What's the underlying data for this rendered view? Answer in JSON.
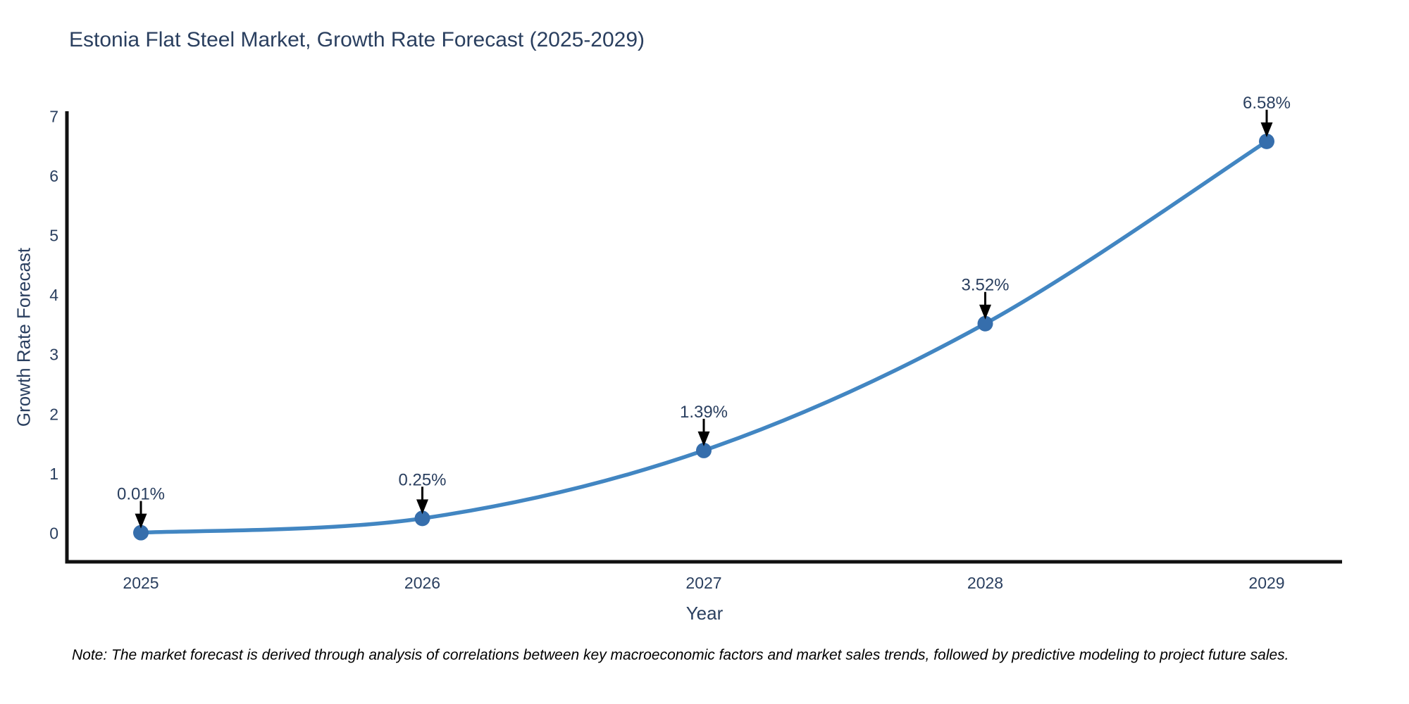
{
  "title": "Estonia Flat Steel Market, Growth Rate Forecast (2025-2029)",
  "note": "Note: The market forecast is derived through analysis of correlations between key macroeconomic factors and market sales trends, followed by predictive modeling to project future sales.",
  "chart_data": {
    "type": "line",
    "title": "Estonia Flat Steel Market, Growth Rate Forecast (2025-2029)",
    "xlabel": "Year",
    "ylabel": "Growth Rate Forecast",
    "x": [
      2025,
      2026,
      2027,
      2028,
      2029
    ],
    "values": [
      0.01,
      0.25,
      1.39,
      3.52,
      6.58
    ],
    "point_labels": [
      "0.01%",
      "0.25%",
      "1.39%",
      "3.52%",
      "6.58%"
    ],
    "xticks": [
      "2025",
      "2026",
      "2027",
      "2028",
      "2029"
    ],
    "yticks": [
      0,
      1,
      2,
      3,
      4,
      5,
      6,
      7
    ],
    "ytick_labels": [
      "0",
      "1",
      "2",
      "3",
      "4",
      "5",
      "6",
      "7"
    ],
    "ylim": [
      0,
      7
    ],
    "grid": false,
    "legend": false,
    "line_shape": "spline",
    "colors": {
      "line": "#4286c2",
      "marker": "#366eac",
      "axis": "#111111",
      "text": "#2a3f5f",
      "annotation_arrow": "#000000",
      "background": "#ffffff"
    }
  }
}
